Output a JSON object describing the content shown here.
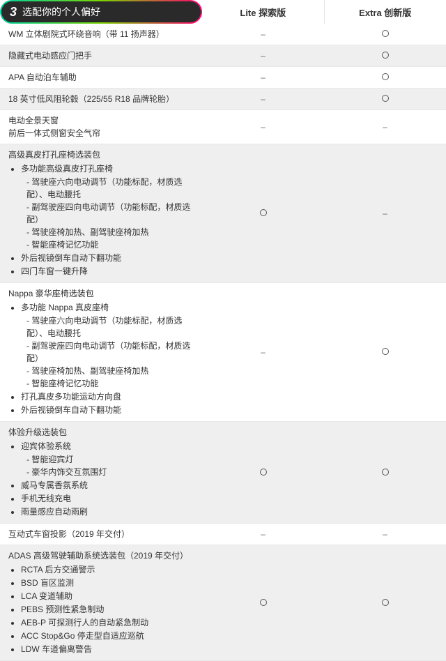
{
  "header": {
    "badge_number": "3",
    "badge_title": "选配你的个人偏好",
    "col1": "Lite 探索版",
    "col2": "Extra 创新版"
  },
  "marks": {
    "dash": "–",
    "circle": "○"
  },
  "rows": [
    {
      "alt": false,
      "title": "WM 立体剧院式环绕音响（带 11 扬声器）",
      "c1": "dash",
      "c2": "circle"
    },
    {
      "alt": true,
      "title": "隐藏式电动感应门把手",
      "c1": "dash",
      "c2": "circle"
    },
    {
      "alt": false,
      "title": "APA 自动泊车辅助",
      "c1": "dash",
      "c2": "circle"
    },
    {
      "alt": true,
      "title": "18 英寸低风阻轮毂（225/55 R18 品牌轮胎）",
      "c1": "dash",
      "c2": "circle"
    },
    {
      "alt": false,
      "title": "电动全景天窗",
      "title2": "前后一体式侧窗安全气帘",
      "c1": "dash",
      "c2": "dash"
    },
    {
      "alt": true,
      "title": "高级真皮打孔座椅选装包",
      "bullets": [
        "多功能高级真皮打孔座椅",
        "- 驾驶座六向电动调节（功能标配，材质选配）、电动腰托",
        "- 副驾驶座四向电动调节（功能标配，材质选配）",
        "- 驾驶座椅加热、副驾驶座椅加热",
        "- 智能座椅记忆功能",
        "外后视镜倒车自动下翻功能",
        "四门车窗一键升降"
      ],
      "c1": "circle",
      "c2": "dash"
    },
    {
      "alt": false,
      "title": "Nappa 豪华座椅选装包",
      "bullets": [
        "多功能 Nappa 真皮座椅",
        "- 驾驶座六向电动调节（功能标配，材质选配）、电动腰托",
        "- 副驾驶座四向电动调节（功能标配，材质选配）",
        "- 驾驶座椅加热、副驾驶座椅加热",
        "- 智能座椅记忆功能",
        "打孔真皮多功能运动方向盘",
        "外后视镜倒车自动下翻功能"
      ],
      "c1": "dash",
      "c2": "circle"
    },
    {
      "alt": true,
      "title": "体验升级选装包",
      "bullets": [
        "迎宾体验系统",
        "- 智能迎宾灯",
        "- 豪华内饰交互氛围灯",
        "威马专属香氛系统",
        "手机无线充电",
        "雨量感应自动雨刷"
      ],
      "c1": "circle",
      "c2": "circle"
    },
    {
      "alt": false,
      "title": "互动式车窗投影（2019 年交付）",
      "c1": "dash",
      "c2": "dash"
    },
    {
      "alt": true,
      "title": "ADAS 高级驾驶辅助系统选装包（2019 年交付）",
      "bullets": [
        "RCTA 后方交通警示",
        "BSD 盲区监测",
        "LCA 变道辅助",
        "PEBS 预测性紧急制动",
        "AEB-P 可探测行人的自动紧急制动",
        "ACC Stop&Go 停走型自适应巡航",
        "LDW 车道偏离警告"
      ],
      "c1": "circle",
      "c2": "circle"
    }
  ]
}
